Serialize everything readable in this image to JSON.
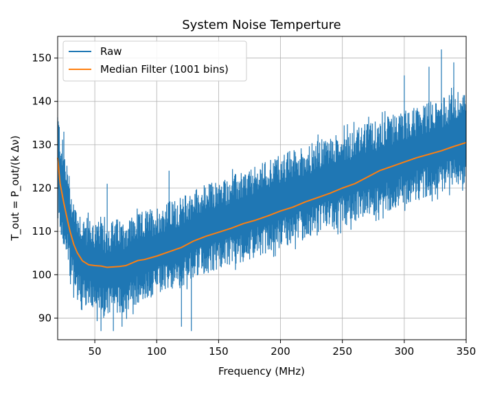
{
  "chart_data": {
    "type": "line",
    "title": "System Noise Temperture",
    "xlabel": "Frequency (MHz)",
    "ylabel": "T_out = P_out/(k Δν)",
    "xlim": [
      20,
      350
    ],
    "ylim": [
      85,
      155
    ],
    "xticks": [
      50,
      100,
      150,
      200,
      250,
      300,
      350
    ],
    "yticks": [
      90,
      100,
      110,
      120,
      130,
      140,
      150
    ],
    "grid": true,
    "legend_position": "top-left",
    "series": [
      {
        "name": "Raw",
        "color": "#1f77b4",
        "style": "noisy",
        "x": [
          20,
          22,
          25,
          28,
          30,
          33,
          36,
          40,
          45,
          50,
          55,
          60,
          65,
          70,
          75,
          80,
          85,
          90,
          100,
          110,
          120,
          130,
          140,
          150,
          160,
          170,
          180,
          190,
          200,
          210,
          220,
          230,
          240,
          250,
          260,
          270,
          280,
          290,
          300,
          310,
          320,
          330,
          340,
          350
        ],
        "upper": [
          139,
          134,
          130,
          126,
          122,
          118,
          116,
          114,
          113,
          113,
          112,
          112,
          113,
          113,
          113,
          114,
          114,
          115,
          116,
          117,
          118,
          120,
          121,
          122,
          123,
          124,
          125,
          127,
          128,
          129,
          130,
          131,
          132,
          133,
          134,
          135,
          136,
          137,
          138,
          139,
          140,
          141,
          142,
          143
        ],
        "lower": [
          115,
          110,
          105,
          102,
          98,
          96,
          94,
          93,
          92,
          91,
          90,
          90,
          90,
          91,
          91,
          92,
          93,
          94,
          95,
          96,
          97,
          99,
          100,
          101,
          102,
          103,
          104,
          105,
          106,
          107,
          108,
          109,
          110,
          111,
          112,
          113,
          114,
          115,
          116,
          117,
          118,
          119,
          120,
          121
        ],
        "max_spikes": [
          {
            "x": 330,
            "y": 152
          },
          {
            "x": 340,
            "y": 149
          },
          {
            "x": 320,
            "y": 148
          },
          {
            "x": 300,
            "y": 146
          },
          {
            "x": 25,
            "y": 133
          },
          {
            "x": 60,
            "y": 121
          },
          {
            "x": 110,
            "y": 124
          }
        ],
        "min_spikes": [
          {
            "x": 55,
            "y": 87
          },
          {
            "x": 65,
            "y": 87
          },
          {
            "x": 120,
            "y": 88
          },
          {
            "x": 128,
            "y": 87
          },
          {
            "x": 72,
            "y": 88
          }
        ]
      },
      {
        "name": "Median Filter (1001 bins)",
        "color": "#ff7f0e",
        "x": [
          20,
          22,
          25,
          28,
          30,
          33,
          36,
          40,
          45,
          50,
          55,
          60,
          65,
          70,
          75,
          80,
          85,
          90,
          100,
          110,
          120,
          130,
          140,
          150,
          160,
          170,
          180,
          190,
          200,
          210,
          220,
          230,
          240,
          250,
          260,
          270,
          280,
          290,
          300,
          310,
          320,
          330,
          340,
          350
        ],
        "y": [
          127,
          121,
          116.5,
          112.5,
          110,
          107,
          105,
          103.2,
          102.3,
          102.1,
          102,
          101.7,
          101.8,
          101.9,
          102.1,
          102.7,
          103.3,
          103.5,
          104.3,
          105.3,
          106.3,
          107.8,
          108.9,
          109.8,
          110.7,
          111.8,
          112.6,
          113.6,
          114.7,
          115.6,
          116.8,
          117.8,
          118.8,
          120,
          121,
          122.5,
          124,
          125,
          126,
          127,
          127.8,
          128.6,
          129.6,
          130.5
        ]
      }
    ]
  }
}
